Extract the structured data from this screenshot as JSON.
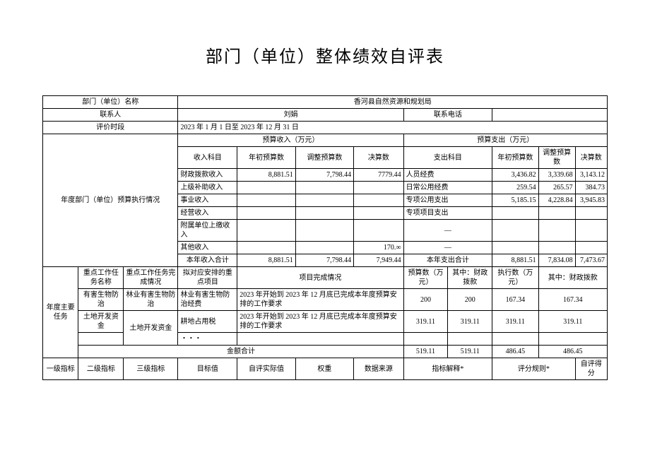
{
  "title": "部门（单位）整体绩效自评表",
  "header": {
    "dept_label": "部门（单位）名称",
    "dept_value": "香河县自然资源和规划局",
    "contact_label": "联系人",
    "contact_value": "刘娟",
    "phone_label": "联系电话",
    "phone_value": "",
    "period_label": "评价时段",
    "period_value": "2023 年 1 月 1 日至 2023 年 12 月 31 日"
  },
  "budget": {
    "section_label": "年度部门（单位）预算执行情况",
    "income_header": "预算收入（万元）",
    "expense_header": "预算支出（万元）",
    "income_col_subject": "收入科目",
    "income_col_initial": "年初预算数",
    "income_col_adjust": "调整预算数",
    "income_col_final": "决算数",
    "expense_col_subject": "支出科目",
    "expense_col_initial": "年初预算数",
    "expense_col_adjust": "调整预算数",
    "expense_col_final": "决算数",
    "income_rows": [
      {
        "subject": "财政拨款收入",
        "initial": "8,881.51",
        "adjust": "7,798.44",
        "final": "7779.44"
      },
      {
        "subject": "上级补助收入",
        "initial": "",
        "adjust": "",
        "final": ""
      },
      {
        "subject": "事业收入",
        "initial": "",
        "adjust": "",
        "final": ""
      },
      {
        "subject": "经营收入",
        "initial": "",
        "adjust": "",
        "final": ""
      },
      {
        "subject": "附属单位上缴收入",
        "initial": "",
        "adjust": "",
        "final": ""
      },
      {
        "subject": "其他收入",
        "initial": "",
        "adjust": "",
        "final": "170.∞"
      }
    ],
    "expense_rows": [
      {
        "subject": "人员经费",
        "initial": "3,436.82",
        "adjust": "3,339.68",
        "final": "3,143.12"
      },
      {
        "subject": "日常公用经费",
        "initial": "259.54",
        "adjust": "265.57",
        "final": "384.73"
      },
      {
        "subject": "专项公用支出",
        "initial": "5,185.15",
        "adjust": "4,228.84",
        "final": "3,945.83"
      },
      {
        "subject": "专项项目支出",
        "initial": "",
        "adjust": "",
        "final": ""
      },
      {
        "subject": "—",
        "initial": "",
        "adjust": "",
        "final": ""
      },
      {
        "subject": "—",
        "initial": "",
        "adjust": "",
        "final": ""
      }
    ],
    "income_total_label": "本年收入合计",
    "income_total": {
      "initial": "8,881.51",
      "adjust": "7,798.44",
      "final": "7,949.44"
    },
    "expense_total_label": "本年支出合计",
    "expense_total": {
      "initial": "8,881.51",
      "adjust": "7,834.08",
      "final": "7,473.67"
    }
  },
  "tasks": {
    "section_label": "年度主要任务",
    "col_name": "重点工作任务名称",
    "col_status": "重点工作任务完成情况",
    "col_project": "拟对应安排的重点项目",
    "col_complete": "项目完成情况",
    "col_budget": "预算数（万元）",
    "col_fiscal1": "其中：财政拨款",
    "col_exec": "执行数（万元）",
    "col_fiscal2": "其中：财政拨款",
    "rows": [
      {
        "name": "有害生物防治",
        "status": "林业有害生物防治",
        "project": "林业有害生物防治经费",
        "complete": "2023 年开始到 2023 年 12 月底已完成本年度预算安排的工作要求",
        "budget": "200",
        "fiscal1": "200",
        "exec": "167.34",
        "fiscal2": "167.34"
      },
      {
        "name": "土地开发资金",
        "status": "土地开发资金",
        "project": "耕地占用税",
        "complete": "2023 年开始到 2023 年 12 月底已完成本年度预算安排的工作要求",
        "budget": "319.11",
        "fiscal1": "319.11",
        "exec": "319.11",
        "fiscal2": "319.11"
      }
    ],
    "ellipsis": "・・・",
    "total_label": "金额合计",
    "total": {
      "budget": "519.11",
      "fiscal1": "519.11",
      "exec": "486.45",
      "fiscal2": "486.45"
    }
  },
  "indicators": {
    "col_l1": "一级指标",
    "col_l2": "二级指标",
    "col_l3": "三级指标",
    "col_target": "目标值",
    "col_actual": "自评实际值",
    "col_weight": "权重",
    "col_source": "数据来源",
    "col_interp": "指标解释*",
    "col_rule": "评分规则*",
    "col_score": "自评得分"
  }
}
